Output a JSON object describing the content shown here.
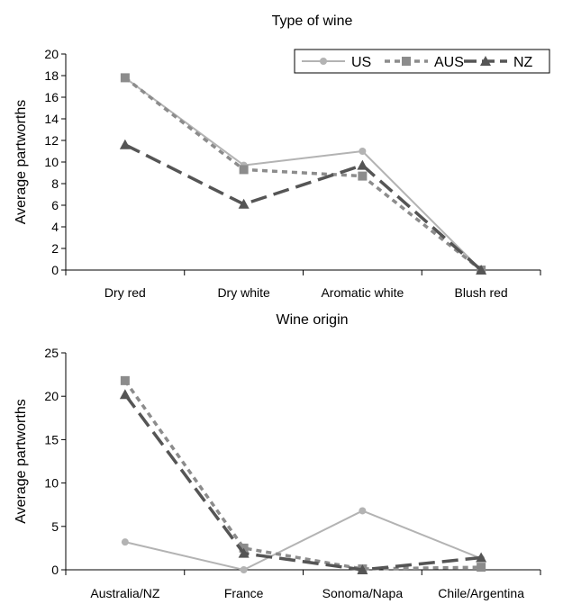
{
  "chart_data": [
    {
      "type": "line",
      "title": "Type of wine",
      "xlabel": "",
      "ylabel": "Average partworths",
      "categories": [
        "Dry red",
        "Dry white",
        "Aromatic white",
        "Blush red"
      ],
      "ylim": [
        0,
        20
      ],
      "yticks": [
        0,
        2,
        4,
        6,
        8,
        10,
        12,
        14,
        16,
        18,
        20
      ],
      "grid": false,
      "legend": "top-right",
      "series": [
        {
          "name": "US",
          "values": [
            17.8,
            9.7,
            11.0,
            0.0
          ],
          "color": "#b3b3b3",
          "dash": "solid",
          "marker": "circle"
        },
        {
          "name": "AUS",
          "values": [
            17.8,
            9.3,
            8.7,
            0.0
          ],
          "color": "#8c8c8c",
          "dash": "dotted",
          "marker": "square"
        },
        {
          "name": "NZ",
          "values": [
            11.6,
            6.1,
            9.7,
            0.0
          ],
          "color": "#555555",
          "dash": "dashed",
          "marker": "triangle"
        }
      ]
    },
    {
      "type": "line",
      "title": "Wine origin",
      "xlabel": "",
      "ylabel": "Average partworths",
      "categories": [
        "Australia/NZ",
        "France",
        "Sonoma/Napa",
        "Chile/Argentina"
      ],
      "ylim": [
        0,
        25
      ],
      "yticks": [
        0,
        5,
        10,
        15,
        20,
        25
      ],
      "grid": false,
      "series": [
        {
          "name": "US",
          "values": [
            3.2,
            0.0,
            6.8,
            1.3
          ],
          "color": "#b3b3b3",
          "dash": "solid",
          "marker": "circle"
        },
        {
          "name": "AUS",
          "values": [
            21.8,
            2.5,
            0.1,
            0.3
          ],
          "color": "#8c8c8c",
          "dash": "dotted",
          "marker": "square"
        },
        {
          "name": "NZ",
          "values": [
            20.2,
            1.9,
            0.0,
            1.4
          ],
          "color": "#555555",
          "dash": "dashed",
          "marker": "triangle"
        }
      ]
    }
  ]
}
